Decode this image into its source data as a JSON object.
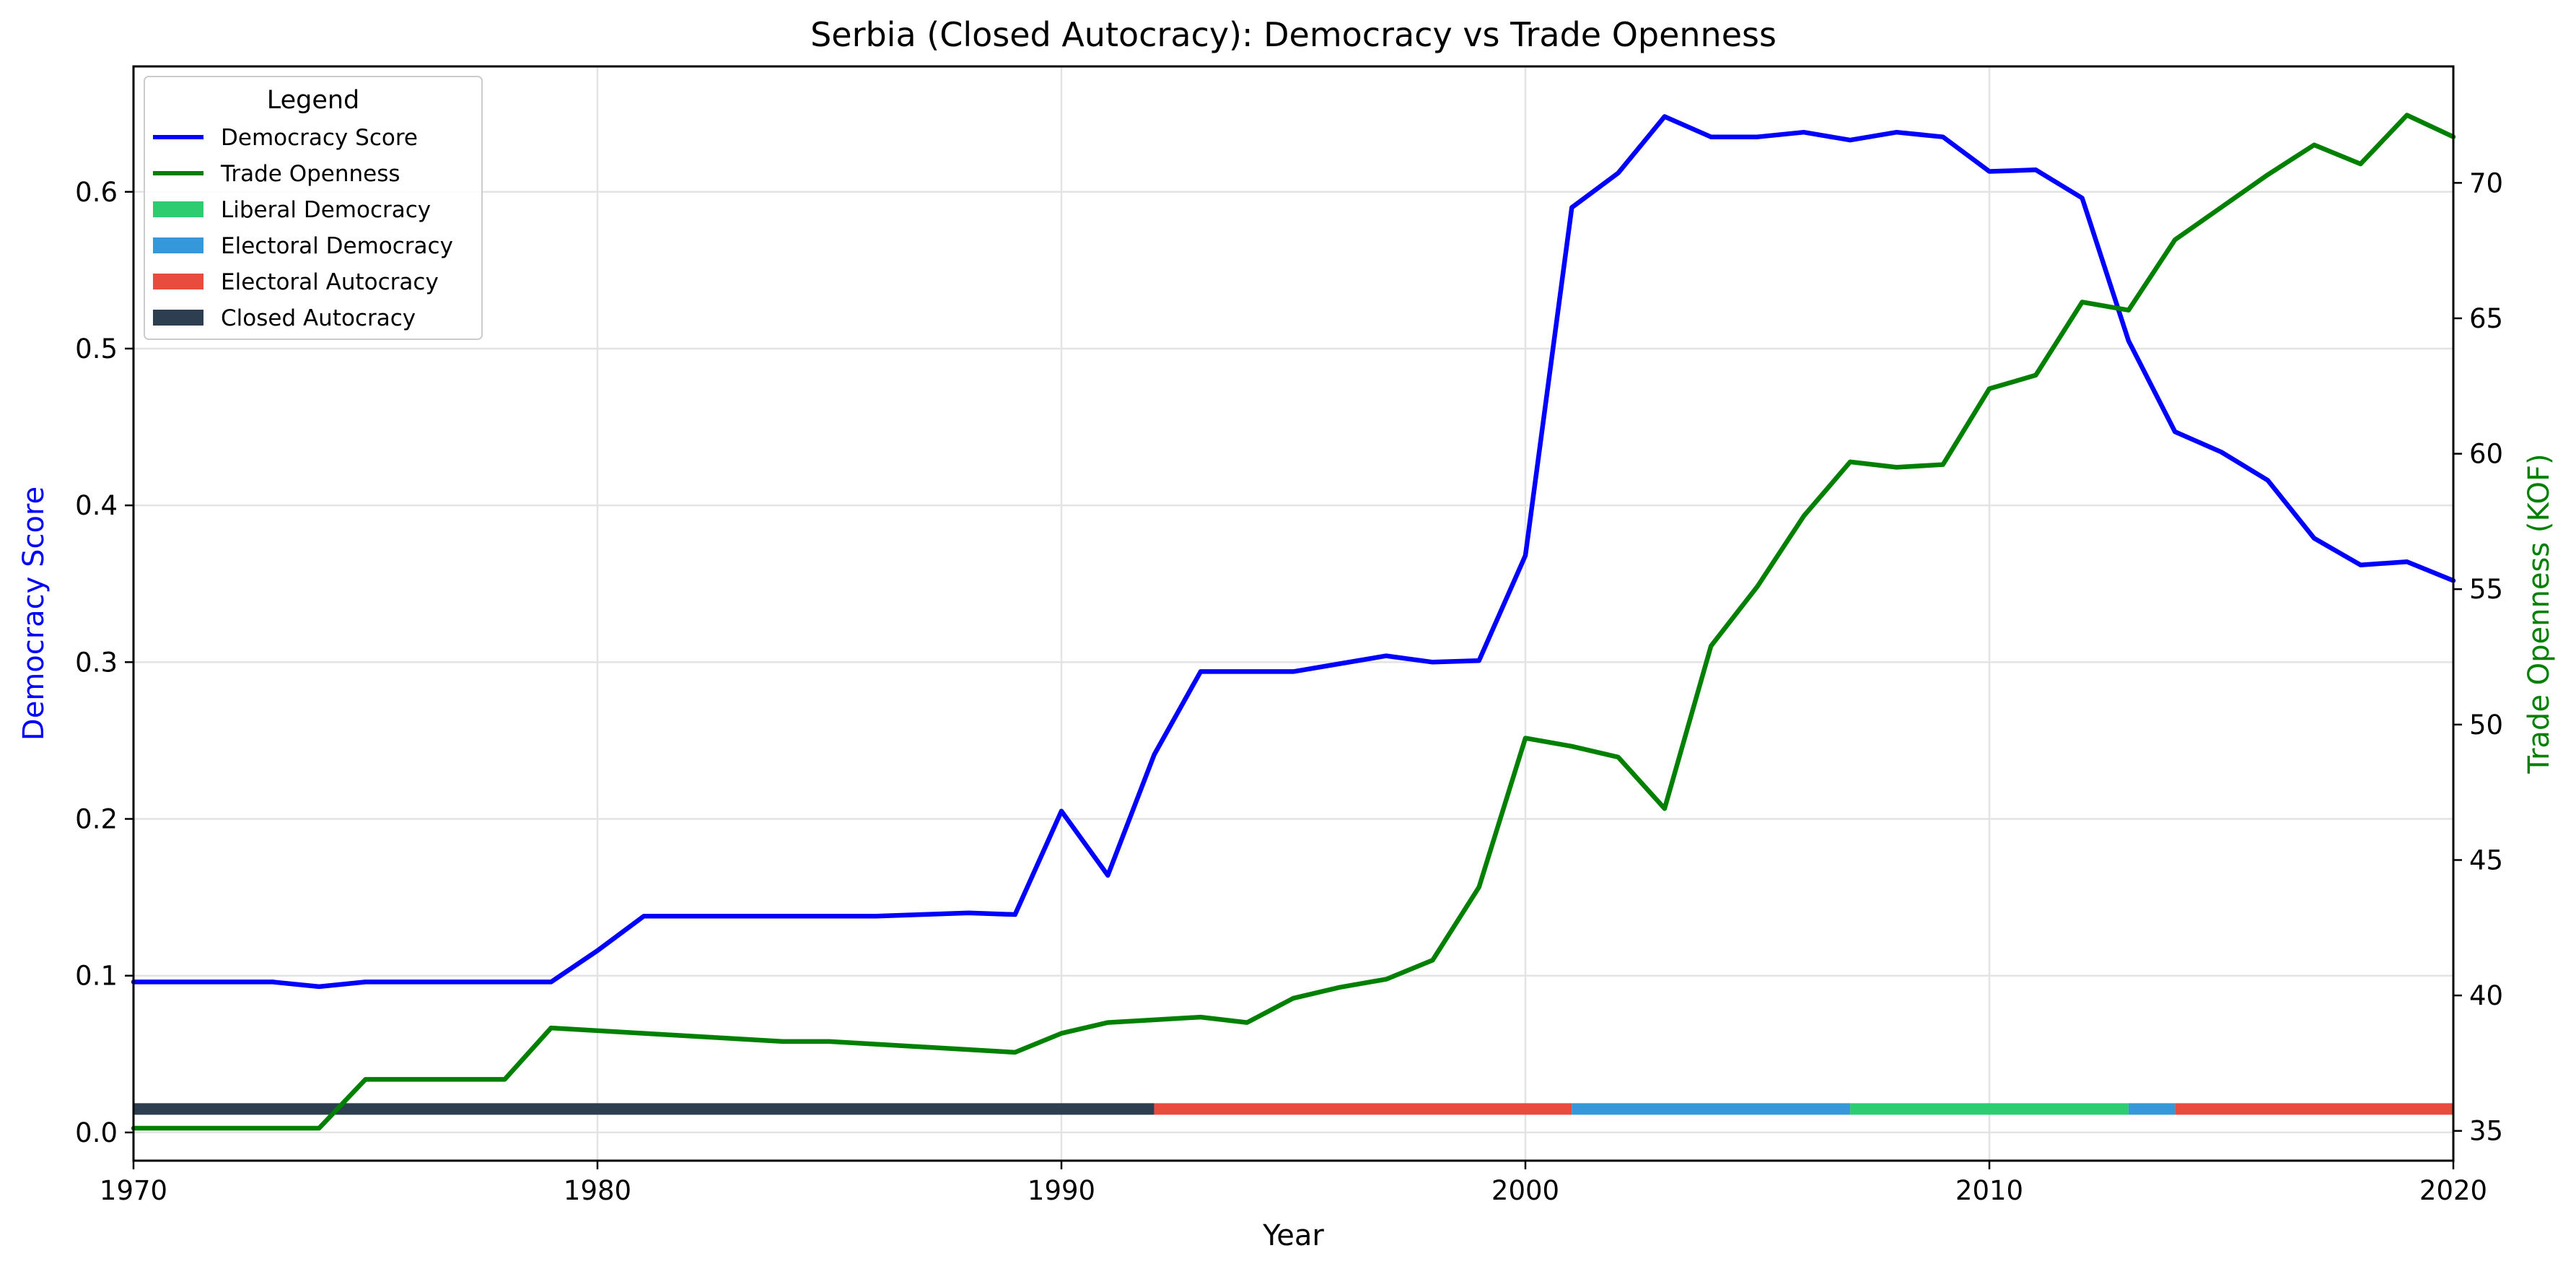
{
  "chart_data": {
    "type": "line",
    "title": "Serbia (Closed Autocracy): Democracy vs Trade Openness",
    "xlabel": "Year",
    "ylabel_left": "Democracy Score",
    "ylabel_right": "Trade Openness (KOF)",
    "xlim": [
      1970,
      2020
    ],
    "ylim_left": [
      -0.018,
      0.68
    ],
    "ylim_right": [
      33.9,
      74.3
    ],
    "x_ticks": [
      1970,
      1980,
      1990,
      2000,
      2010,
      2020
    ],
    "y_ticks_left": [
      0.0,
      0.1,
      0.2,
      0.3,
      0.4,
      0.5,
      0.6
    ],
    "y_tick_labels_left": [
      "0.0",
      "0.1",
      "0.2",
      "0.3",
      "0.4",
      "0.5",
      "0.6"
    ],
    "y_ticks_right": [
      35,
      40,
      45,
      50,
      55,
      60,
      65,
      70
    ],
    "grid": true,
    "legend": {
      "title": "Legend",
      "placement": "top-left",
      "entries": [
        {
          "label": "Democracy Score",
          "kind": "line",
          "color": "#0000ff"
        },
        {
          "label": "Trade Openness",
          "kind": "line",
          "color": "#008000"
        },
        {
          "label": "Liberal Democracy",
          "kind": "patch",
          "color": "#2ecc71"
        },
        {
          "label": "Electoral Democracy",
          "kind": "patch",
          "color": "#3498db"
        },
        {
          "label": "Electoral Autocracy",
          "kind": "patch",
          "color": "#e74c3c"
        },
        {
          "label": "Closed Autocracy",
          "kind": "patch",
          "color": "#2c3e50"
        }
      ]
    },
    "x": [
      1970,
      1971,
      1972,
      1973,
      1974,
      1975,
      1976,
      1977,
      1978,
      1979,
      1980,
      1981,
      1982,
      1983,
      1984,
      1985,
      1986,
      1987,
      1988,
      1989,
      1990,
      1991,
      1992,
      1993,
      1994,
      1995,
      1996,
      1997,
      1998,
      1999,
      2000,
      2001,
      2002,
      2003,
      2004,
      2005,
      2006,
      2007,
      2008,
      2009,
      2010,
      2011,
      2012,
      2013,
      2014,
      2015,
      2016,
      2017,
      2018,
      2019,
      2020
    ],
    "series": [
      {
        "name": "Democracy Score",
        "axis": "left",
        "color": "#0000ff",
        "values": [
          0.096,
          0.096,
          0.096,
          0.096,
          0.093,
          0.096,
          0.096,
          0.096,
          0.096,
          0.096,
          0.116,
          0.138,
          0.138,
          0.138,
          0.138,
          0.138,
          0.138,
          0.139,
          0.14,
          0.139,
          0.205,
          0.164,
          0.241,
          0.294,
          0.294,
          0.294,
          0.299,
          0.304,
          0.3,
          0.301,
          0.368,
          0.59,
          0.612,
          0.648,
          0.635,
          0.635,
          0.638,
          0.633,
          0.638,
          0.635,
          0.613,
          0.614,
          0.596,
          0.505,
          0.447,
          0.434,
          0.416,
          0.379,
          0.362,
          0.364,
          0.352
        ]
      },
      {
        "name": "Trade Openness",
        "axis": "right",
        "color": "#008000",
        "values": [
          35.1,
          35.1,
          35.1,
          35.1,
          35.1,
          36.9,
          36.9,
          36.9,
          36.9,
          38.8,
          38.7,
          38.6,
          38.5,
          38.4,
          38.3,
          38.3,
          38.2,
          38.1,
          38.0,
          37.9,
          38.6,
          39.0,
          39.1,
          39.2,
          39.0,
          39.9,
          40.3,
          40.6,
          41.3,
          44.0,
          49.5,
          49.2,
          48.8,
          46.9,
          52.9,
          55.1,
          57.7,
          59.7,
          59.5,
          59.6,
          62.4,
          62.9,
          65.6,
          65.3,
          67.9,
          69.1,
          70.3,
          71.4,
          70.7,
          72.5,
          71.7
        ]
      }
    ],
    "regime_bands": [
      {
        "label": "Closed Autocracy",
        "start": 1970,
        "end": 1992,
        "color": "#2c3e50"
      },
      {
        "label": "Electoral Autocracy",
        "start": 1992,
        "end": 2001,
        "color": "#e74c3c"
      },
      {
        "label": "Electoral Democracy",
        "start": 2001,
        "end": 2007,
        "color": "#3498db"
      },
      {
        "label": "Liberal Democracy",
        "start": 2007,
        "end": 2013,
        "color": "#2ecc71"
      },
      {
        "label": "Electoral Democracy",
        "start": 2013,
        "end": 2014,
        "color": "#3498db"
      },
      {
        "label": "Electoral Autocracy",
        "start": 2014,
        "end": 2020,
        "color": "#e74c3c"
      }
    ],
    "regime_band_level": 0.015
  }
}
